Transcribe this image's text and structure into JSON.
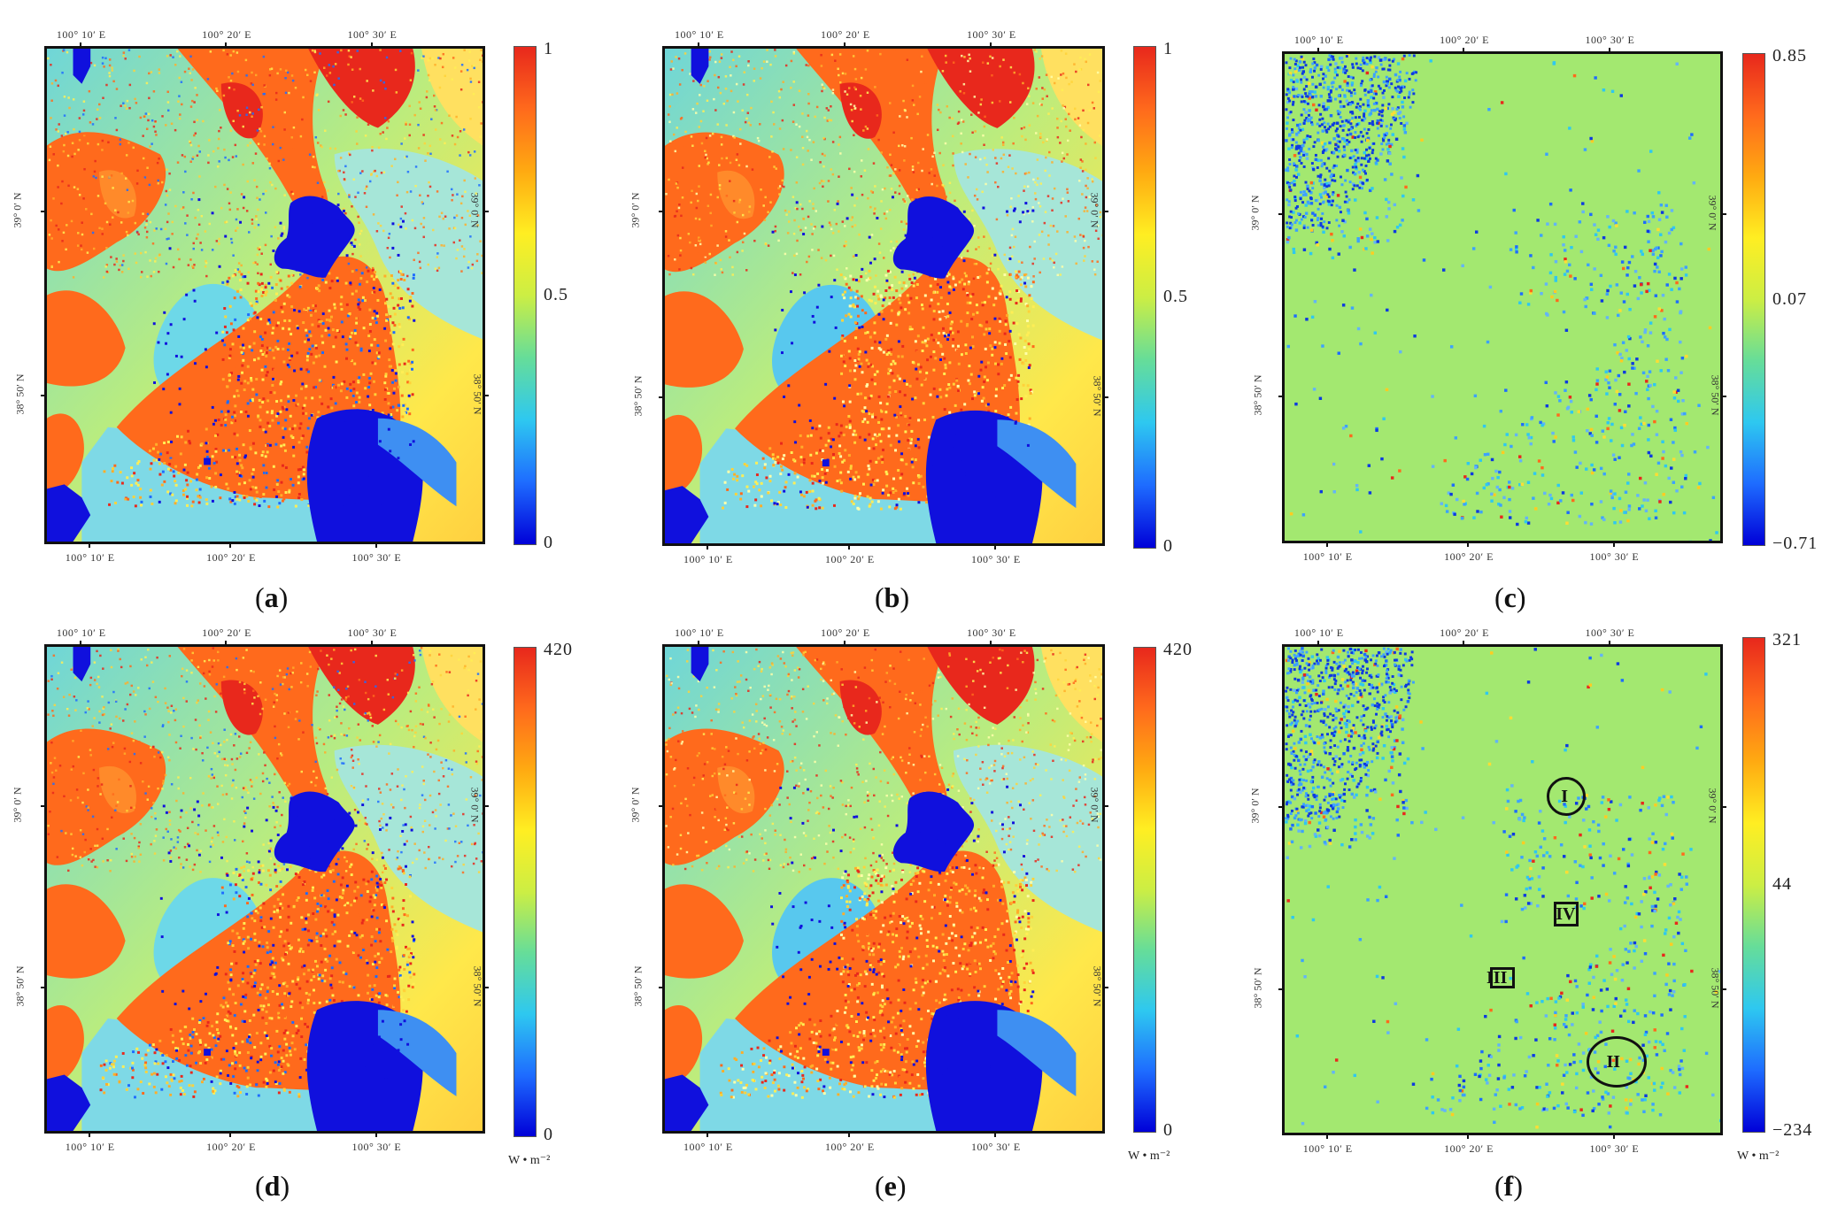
{
  "colors": {
    "scale": [
      "#0000d8",
      "#1e6cff",
      "#2ec8f0",
      "#66dd99",
      "#ccee44",
      "#ffee22",
      "#ffaa11",
      "#ff6a1c",
      "#e8281c"
    ],
    "water": "#1010dd",
    "diff_background": "#a3e870"
  },
  "panels": [
    {
      "id": "a",
      "caption": "a",
      "top_labels": [
        "100° 10′ E",
        "100° 20′ E",
        "100° 30′ E"
      ],
      "bottom_labels": [
        "100° 10′ E",
        "100° 20′ E",
        "100° 30′ E"
      ],
      "lat_labels": [
        "39° 0′ N",
        "38° 50′ N"
      ],
      "colorbar": {
        "max": "1",
        "mid": "0.5",
        "min": "0",
        "unit": ""
      },
      "variant": "ndvi_a"
    },
    {
      "id": "b",
      "caption": "b",
      "top_labels": [
        "100° 10′ E",
        "100° 20′ E",
        "100° 30′ E"
      ],
      "bottom_labels": [
        "100° 10′ E",
        "100° 20′ E",
        "100° 30′ E"
      ],
      "lat_labels": [
        "39° 0′ N",
        "38° 50′ N"
      ],
      "colorbar": {
        "max": "1",
        "mid": "0.5",
        "min": "0",
        "unit": ""
      },
      "variant": "ndvi_b"
    },
    {
      "id": "c",
      "caption": "c",
      "top_labels": [
        "100° 10′ E",
        "100° 20′ E",
        "100° 30′ E"
      ],
      "bottom_labels": [
        "100° 10′ E",
        "100° 20′ E",
        "100° 30′ E"
      ],
      "lat_labels": [
        "39° 0′ N",
        "38° 50′ N"
      ],
      "colorbar": {
        "max": "0.85",
        "mid": "0.07",
        "min": "−0.71",
        "unit": ""
      },
      "variant": "diff"
    },
    {
      "id": "d",
      "caption": "d",
      "top_labels": [
        "100° 10′ E",
        "100° 20′ E",
        "100° 30′ E"
      ],
      "bottom_labels": [
        "100° 10′ E",
        "100° 20′ E",
        "100° 30′ E"
      ],
      "lat_labels": [
        "39° 0′ N",
        "38° 50′ N"
      ],
      "colorbar": {
        "max": "420",
        "mid": "",
        "min": "0",
        "unit": "W • m⁻²"
      },
      "variant": "ndvi_a"
    },
    {
      "id": "e",
      "caption": "e",
      "top_labels": [
        "100° 10′ E",
        "100° 20′ E",
        "100° 30′ E"
      ],
      "bottom_labels": [
        "100° 10′ E",
        "100° 20′ E",
        "100° 30′ E"
      ],
      "lat_labels": [
        "39° 0′ N",
        "38° 50′ N"
      ],
      "colorbar": {
        "max": "420",
        "mid": "",
        "min": "0",
        "unit": "W • m⁻²"
      },
      "variant": "ndvi_b"
    },
    {
      "id": "f",
      "caption": "f",
      "top_labels": [
        "100° 10′ E",
        "100° 20′ E",
        "100° 30′ E"
      ],
      "bottom_labels": [
        "100° 10′ E",
        "100° 20′ E",
        "100° 30′ E"
      ],
      "lat_labels": [
        "39° 0′ N",
        "38° 50′ N"
      ],
      "colorbar": {
        "max": "321",
        "mid": "44",
        "min": "−234",
        "unit": "W • m⁻²"
      },
      "variant": "diff",
      "markers": [
        {
          "label": "I",
          "shape": "circle"
        },
        {
          "label": "IV",
          "shape": "box"
        },
        {
          "label": "III",
          "shape": "box"
        },
        {
          "label": "II",
          "shape": "circle"
        }
      ]
    }
  ]
}
